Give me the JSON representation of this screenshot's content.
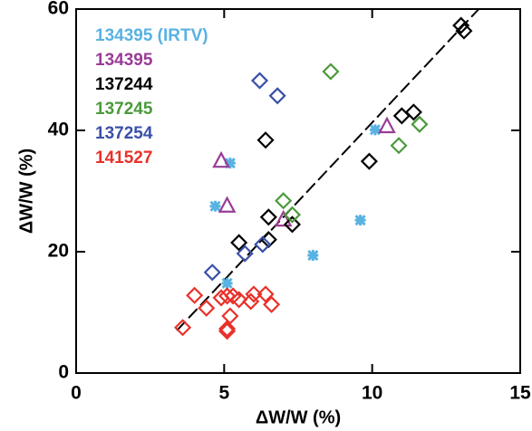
{
  "chart_data": {
    "type": "scatter",
    "x_label": "ΔW/W (%)",
    "y_label": "ΔW/W (%)",
    "xlim": [
      0,
      15
    ],
    "ylim": [
      0,
      60
    ],
    "xticks": [
      0,
      5,
      10,
      15
    ],
    "yticks": [
      0,
      20,
      40,
      60
    ],
    "series": [
      {
        "name": "134395 (IRTV)",
        "color": "#58b2e2",
        "marker": "asterisk",
        "x": [
          4.7,
          5.1,
          5.2,
          8.0,
          9.6,
          10.1
        ],
        "y": [
          27.5,
          14.8,
          34.6,
          19.4,
          25.2,
          40.1
        ]
      },
      {
        "name": "134395",
        "color": "#993c96",
        "marker": "triangle",
        "x": [
          5.1,
          4.9,
          7.0,
          10.5
        ],
        "y": [
          27.5,
          34.9,
          25.2,
          40.6
        ]
      },
      {
        "name": "137244",
        "color": "#000000",
        "marker": "diamond",
        "x": [
          5.5,
          6.5,
          6.5,
          6.4,
          7.3,
          9.9,
          11.0,
          11.4,
          13.0,
          13.1
        ],
        "y": [
          21.5,
          25.7,
          22,
          38.4,
          24.5,
          34.9,
          42.4,
          43,
          57.3,
          56.4
        ]
      },
      {
        "name": "137245",
        "color": "#4b9a3b",
        "marker": "diamond",
        "x": [
          7.0,
          7.3,
          8.6,
          10.9,
          11.6
        ],
        "y": [
          28.4,
          26.1,
          49.7,
          37.5,
          41
        ]
      },
      {
        "name": "137254",
        "color": "#3a50a8",
        "marker": "diamond",
        "x": [
          4.6,
          5.7,
          6.2,
          6.8,
          6.3
        ],
        "y": [
          16.6,
          19.7,
          48.2,
          45.7,
          21.2
        ]
      },
      {
        "name": "141527",
        "color": "#e8322a",
        "marker": "diamond",
        "x": [
          3.6,
          4.0,
          4.4,
          4.9,
          5.1,
          5.1,
          5.1,
          5.2,
          5.3,
          5.5,
          5.9,
          6.0,
          6.4,
          6.6
        ],
        "y": [
          7.5,
          12.8,
          10.7,
          12.4,
          12.7,
          7.3,
          6.9,
          9.4,
          12.7,
          12.1,
          11.8,
          13,
          13,
          11.3
        ]
      }
    ],
    "line": {
      "x": [
        3.4,
        13.6
      ],
      "y": [
        7,
        60
      ]
    }
  }
}
